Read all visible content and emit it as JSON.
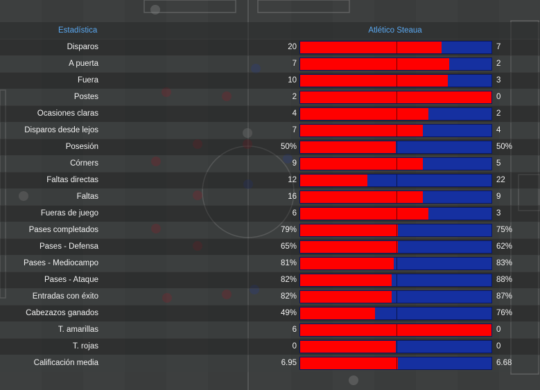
{
  "header": {
    "stat_col": "Estadística",
    "teams_col": "Atlético Steaua"
  },
  "colors": {
    "home": "#ff0000",
    "away": "#1530a0",
    "header_text": "#5aa8f0"
  },
  "rows": [
    {
      "label": "Disparos",
      "left": "20",
      "right": "7",
      "home_share": 0.74
    },
    {
      "label": "A puerta",
      "left": "7",
      "right": "2",
      "home_share": 0.78
    },
    {
      "label": "Fuera",
      "left": "10",
      "right": "3",
      "home_share": 0.77
    },
    {
      "label": "Postes",
      "left": "2",
      "right": "0",
      "home_share": 1.0
    },
    {
      "label": "Ocasiones claras",
      "left": "4",
      "right": "2",
      "home_share": 0.67
    },
    {
      "label": "Disparos desde lejos",
      "left": "7",
      "right": "4",
      "home_share": 0.64
    },
    {
      "label": "Posesión",
      "left": "50%",
      "right": "50%",
      "home_share": 0.5
    },
    {
      "label": "Córners",
      "left": "9",
      "right": "5",
      "home_share": 0.64
    },
    {
      "label": "Faltas directas",
      "left": "12",
      "right": "22",
      "home_share": 0.35
    },
    {
      "label": "Faltas",
      "left": "16",
      "right": "9",
      "home_share": 0.64
    },
    {
      "label": "Fueras de juego",
      "left": "6",
      "right": "3",
      "home_share": 0.67
    },
    {
      "label": "Pases completados",
      "left": "79%",
      "right": "75%",
      "home_share": 0.51
    },
    {
      "label": "Pases - Defensa",
      "left": "65%",
      "right": "62%",
      "home_share": 0.51
    },
    {
      "label": "Pases - Mediocampo",
      "left": "81%",
      "right": "83%",
      "home_share": 0.49
    },
    {
      "label": "Pases - Ataque",
      "left": "82%",
      "right": "88%",
      "home_share": 0.48
    },
    {
      "label": "Entradas con éxito",
      "left": "82%",
      "right": "87%",
      "home_share": 0.48
    },
    {
      "label": "Cabezazos ganados",
      "left": "49%",
      "right": "76%",
      "home_share": 0.39
    },
    {
      "label": "T. amarillas",
      "left": "6",
      "right": "0",
      "home_share": 1.0
    },
    {
      "label": "T. rojas",
      "left": "0",
      "right": "0",
      "home_share": 0.5
    },
    {
      "label": "Calificación media",
      "left": "6.95",
      "right": "6.68",
      "home_share": 0.51
    }
  ]
}
